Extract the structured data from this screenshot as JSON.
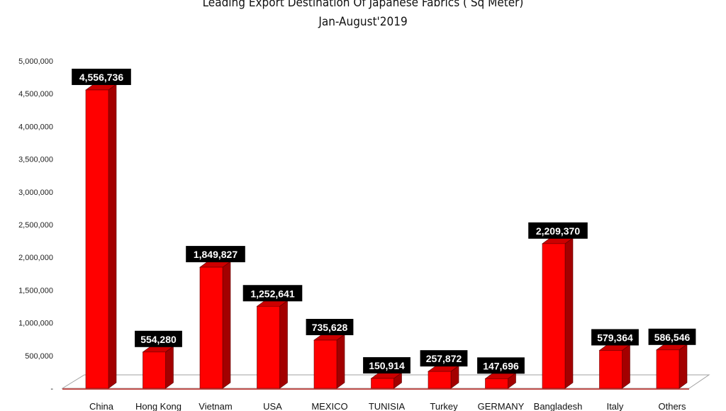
{
  "chart_data": {
    "type": "bar",
    "title": "Leading Export Destination Of Japanese Fabrics ( Sq Meter)",
    "subtitle": "Jan-August'2019",
    "categories": [
      "China",
      "Hong Kong",
      "Vietnam",
      "USA",
      "MEXICO",
      "TUNISIA",
      "Turkey",
      "GERMANY",
      "Bangladesh",
      "Italy",
      "Others"
    ],
    "values": [
      4556736,
      554280,
      1849827,
      1252641,
      735628,
      150914,
      257872,
      147696,
      2209370,
      579364,
      586546
    ],
    "data_labels": [
      "4,556,736",
      "554,280",
      "1,849,827",
      "1,252,641",
      "735,628",
      "150,914",
      "257,872",
      "147,696",
      "2,209,370",
      "579,364",
      "586,546"
    ],
    "y_ticks": [
      0,
      500000,
      1000000,
      1500000,
      2000000,
      2500000,
      3000000,
      3500000,
      4000000,
      4500000,
      5000000
    ],
    "y_tick_labels": [
      "-",
      "500,000",
      "1,000,000",
      "1,500,000",
      "2,000,000",
      "2,500,000",
      "3,000,000",
      "3,500,000",
      "4,000,000",
      "4,500,000",
      "5,000,000"
    ],
    "ylim": [
      0,
      5000000
    ],
    "xlabel": "",
    "ylabel": "",
    "grid": false,
    "legend": "none",
    "colors": {
      "bar_front": "#ff0000",
      "bar_side": "#a30000",
      "bar_top": "#cc0000",
      "label_bg": "#000000",
      "label_text": "#ffffff",
      "floor_line": "#c0504d"
    }
  }
}
